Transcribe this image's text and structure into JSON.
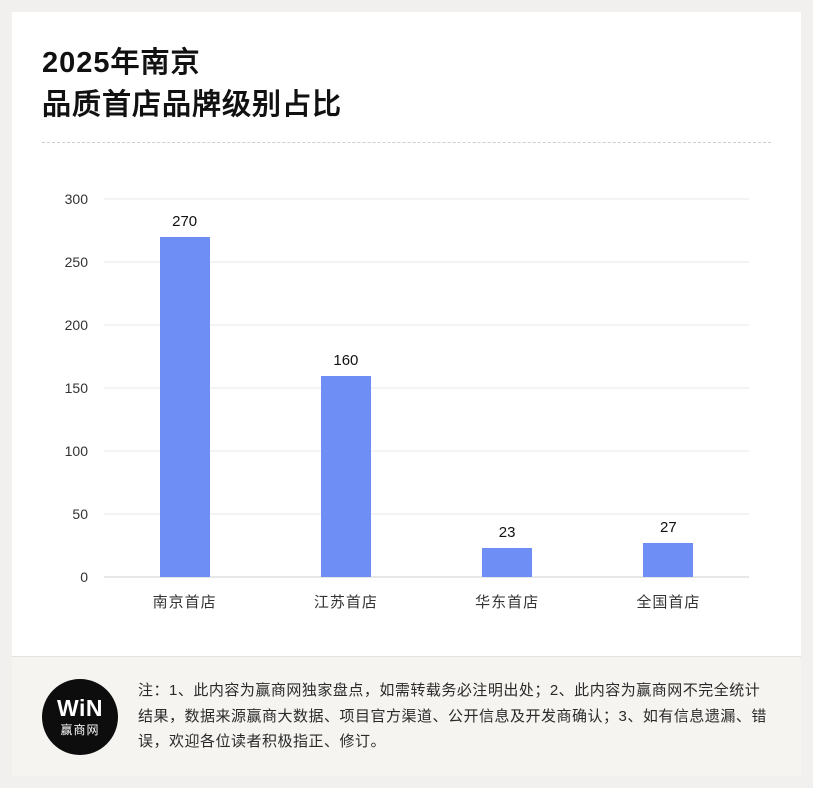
{
  "header": {
    "title_line1": "2025年南京",
    "title_line2": "品质首店品牌级别占比"
  },
  "chart_data": {
    "type": "bar",
    "categories": [
      "南京首店",
      "江苏首店",
      "华东首店",
      "全国首店"
    ],
    "values": [
      270,
      160,
      23,
      27
    ],
    "title": "2025年南京品质首店品牌级别占比",
    "xlabel": "",
    "ylabel": "",
    "ylim": [
      0,
      300
    ],
    "yticks": [
      0,
      50,
      100,
      150,
      200,
      250,
      300
    ],
    "bar_color": "#6e8ef5",
    "grid": true,
    "legend_position": "none"
  },
  "footer": {
    "logo_text_top": "WiN",
    "logo_text_bottom": "赢商网",
    "note": "注：1、此内容为赢商网独家盘点，如需转载务必注明出处；2、此内容为赢商网不完全统计结果，数据来源赢商大数据、项目官方渠道、公开信息及开发商确认；3、如有信息遗漏、错误，欢迎各位读者积极指正、修订。"
  }
}
